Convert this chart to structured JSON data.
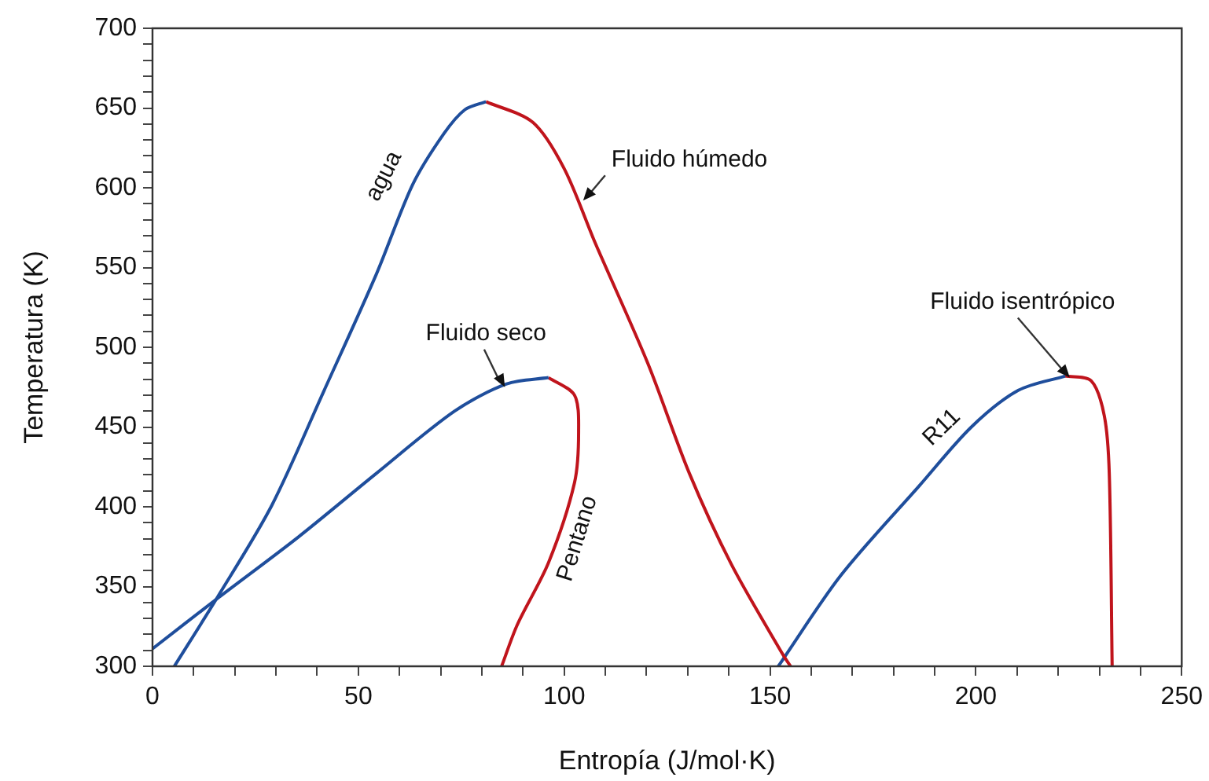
{
  "chart_data": {
    "type": "line",
    "xlabel": "Entropía (J/mol·K)",
    "ylabel": "Temperatura (K)",
    "xlim": [
      0,
      250
    ],
    "ylim": [
      300,
      700
    ],
    "xticks": [
      0,
      {
        "value": 10,
        "label": null
      },
      {
        "value": 20,
        "label": null
      },
      {
        "value": 30,
        "label": null
      },
      {
        "value": 40,
        "label": null
      },
      50,
      {
        "value": 60,
        "label": null
      },
      {
        "value": 70,
        "label": null
      },
      {
        "value": 80,
        "label": null
      },
      {
        "value": 90,
        "label": null
      },
      100,
      {
        "value": 110,
        "label": null
      },
      {
        "value": 120,
        "label": null
      },
      {
        "value": 130,
        "label": null
      },
      {
        "value": 140,
        "label": null
      },
      150,
      {
        "value": 160,
        "label": null
      },
      {
        "value": 170,
        "label": null
      },
      {
        "value": 180,
        "label": null
      },
      {
        "value": 190,
        "label": null
      },
      200,
      {
        "value": 210,
        "label": null
      },
      {
        "value": 220,
        "label": null
      },
      {
        "value": 230,
        "label": null
      },
      {
        "value": 240,
        "label": null
      },
      250
    ],
    "yticks": [
      300,
      {
        "value": 310,
        "label": null
      },
      {
        "value": 320,
        "label": null
      },
      {
        "value": 330,
        "label": null
      },
      {
        "value": 340,
        "label": null
      },
      350,
      {
        "value": 360,
        "label": null
      },
      {
        "value": 370,
        "label": null
      },
      {
        "value": 380,
        "label": null
      },
      {
        "value": 390,
        "label": null
      },
      400,
      {
        "value": 410,
        "label": null
      },
      {
        "value": 420,
        "label": null
      },
      {
        "value": 430,
        "label": null
      },
      {
        "value": 440,
        "label": null
      },
      450,
      {
        "value": 460,
        "label": null
      },
      {
        "value": 470,
        "label": null
      },
      {
        "value": 480,
        "label": null
      },
      {
        "value": 490,
        "label": null
      },
      500,
      {
        "value": 510,
        "label": null
      },
      {
        "value": 520,
        "label": null
      },
      {
        "value": 530,
        "label": null
      },
      {
        "value": 540,
        "label": null
      },
      550,
      {
        "value": 560,
        "label": null
      },
      {
        "value": 570,
        "label": null
      },
      {
        "value": 580,
        "label": null
      },
      {
        "value": 590,
        "label": null
      },
      600,
      {
        "value": 610,
        "label": null
      },
      {
        "value": 620,
        "label": null
      },
      {
        "value": 630,
        "label": null
      },
      {
        "value": 640,
        "label": null
      },
      650,
      {
        "value": 660,
        "label": null
      },
      {
        "value": 670,
        "label": null
      },
      {
        "value": 680,
        "label": null
      },
      {
        "value": 690,
        "label": null
      },
      700
    ],
    "grid": false,
    "legend": false,
    "marker": "none",
    "line_style": "solid",
    "series": [
      {
        "color": "#1f4e9c",
        "x": [
          5.3,
          15.7,
          29,
          41.7,
          54.4,
          63.2,
          70.8,
          75.9,
          81
        ],
        "values": [
          300,
          343,
          401,
          473,
          546,
          602,
          634,
          649,
          654
        ]
      },
      {
        "color": "#c0141c",
        "x": [
          81,
          92.4,
          100,
          107.6,
          120.3,
          130.4,
          140.6,
          153.2,
          155
        ],
        "values": [
          654,
          641,
          612,
          565,
          490,
          421,
          364,
          307,
          300
        ]
      },
      {
        "color": "#1f4e9c",
        "x": [
          0,
          16,
          35.4,
          54.4,
          73.4,
          86,
          96.2
        ],
        "values": [
          311,
          343,
          381,
          421,
          460,
          477,
          481
        ]
      },
      {
        "color": "#c0141c",
        "x": [
          96.2,
          102.5,
          103.5,
          102.5,
          96.2,
          88.6,
          84.8
        ],
        "values": [
          481,
          470,
          447,
          415,
          365,
          326,
          300
        ]
      },
      {
        "color": "#1f4e9c",
        "x": [
          152,
          167.2,
          186.2,
          198.9,
          210.3,
          221.7
        ],
        "values": [
          300,
          357,
          413,
          450,
          473,
          482
        ]
      },
      {
        "color": "#c0141c",
        "x": [
          221.7,
          228,
          231.2,
          232.4,
          233.1
        ],
        "values": [
          482,
          479,
          457,
          421,
          300
        ]
      }
    ],
    "annotations": [
      "agua",
      {
        "text": "Fluido húmedo",
        "x": 104.6,
        "y": 592
      },
      {
        "text": "Fluido seco",
        "x": 85.6,
        "y": 475
      },
      "Pentano",
      {
        "text": "Fluido isentrópico",
        "x": 222.8,
        "y": 481
      },
      "R11"
    ]
  }
}
